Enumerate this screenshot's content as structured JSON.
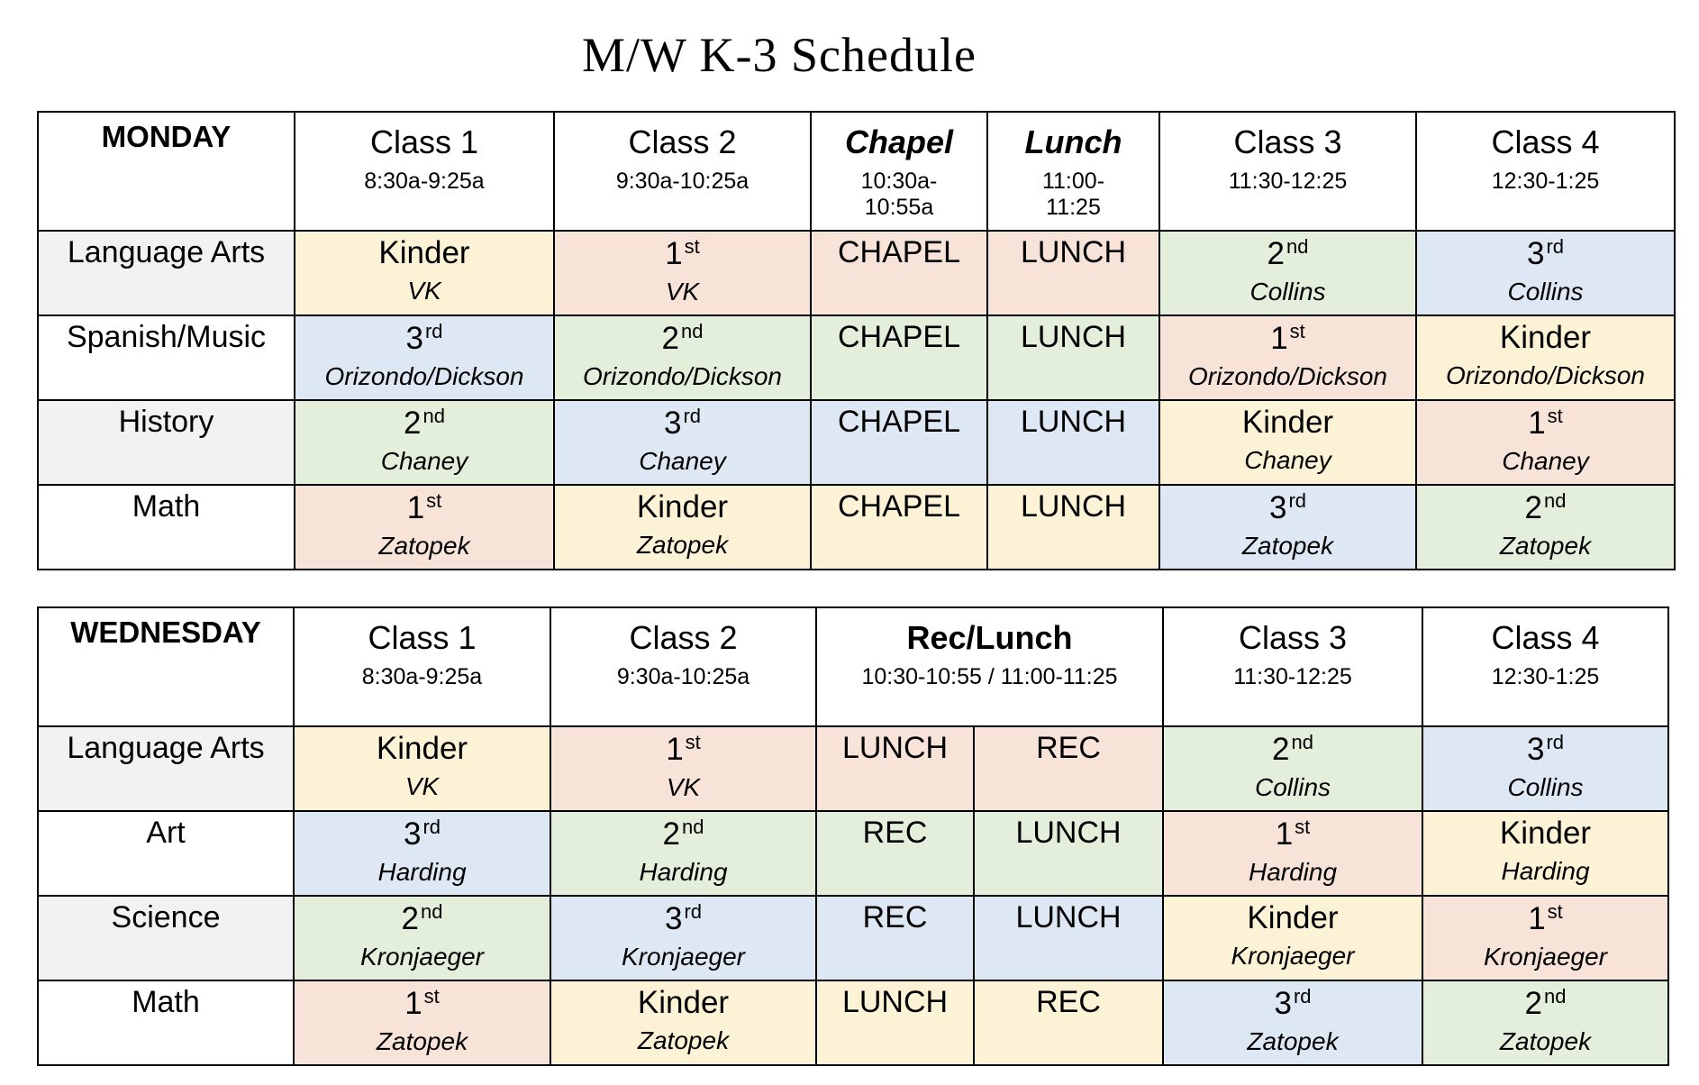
{
  "title": "M/W K-3 Schedule",
  "monday": {
    "day": "MONDAY",
    "columns": [
      {
        "name": "Class 1",
        "time": "8:30a-9:25a"
      },
      {
        "name": "Class 2",
        "time": "9:30a-10:25a"
      },
      {
        "name": "Chapel",
        "time": "10:30a-10:55a",
        "emphasis": "bold-italic"
      },
      {
        "name": "Lunch",
        "time": "11:00-11:25",
        "emphasis": "bold-italic"
      },
      {
        "name": "Class 3",
        "time": "11:30-12:25"
      },
      {
        "name": "Class 4",
        "time": "12:30-1:25"
      }
    ],
    "rows": [
      {
        "subject": "Language Arts",
        "shade": "#f2f2f2",
        "cells": [
          {
            "grade": [
              "Kinder"
            ],
            "teacher": "VK",
            "color": "#fcf2d5"
          },
          {
            "grade": [
              "1",
              "st"
            ],
            "teacher": "VK",
            "color": "#f8e3d9"
          },
          {
            "slots": [
              "CHAPEL"
            ],
            "color": "#f8e3d9"
          },
          {
            "slots": [
              "LUNCH"
            ],
            "color": "#f8e3d9"
          },
          {
            "grade": [
              "2",
              "nd"
            ],
            "teacher": "Collins",
            "color": "#e3efdb"
          },
          {
            "grade": [
              "3",
              "rd"
            ],
            "teacher": "Collins",
            "color": "#dee8f4"
          }
        ]
      },
      {
        "subject": "Spanish/Music",
        "shade": "#ffffff",
        "cells": [
          {
            "grade": [
              "3",
              "rd"
            ],
            "teacher": "Orizondo/Dickson",
            "color": "#dee8f4"
          },
          {
            "grade": [
              "2",
              "nd"
            ],
            "teacher": "Orizondo/Dickson",
            "color": "#e3efdb"
          },
          {
            "slots": [
              "CHAPEL"
            ],
            "color": "#e3efdb"
          },
          {
            "slots": [
              "LUNCH"
            ],
            "color": "#e3efdb"
          },
          {
            "grade": [
              "1",
              "st"
            ],
            "teacher": "Orizondo/Dickson",
            "color": "#f8e3d9"
          },
          {
            "grade": [
              "Kinder"
            ],
            "teacher": "Orizondo/Dickson",
            "color": "#fcf2d5"
          }
        ]
      },
      {
        "subject": "History",
        "shade": "#f2f2f2",
        "cells": [
          {
            "grade": [
              "2",
              "nd"
            ],
            "teacher": "Chaney",
            "color": "#e3efdb"
          },
          {
            "grade": [
              "3",
              "rd"
            ],
            "teacher": "Chaney",
            "color": "#dee8f4"
          },
          {
            "slots": [
              "CHAPEL"
            ],
            "color": "#dee8f4"
          },
          {
            "slots": [
              "LUNCH"
            ],
            "color": "#dee8f4"
          },
          {
            "grade": [
              "Kinder"
            ],
            "teacher": "Chaney",
            "color": "#fcf2d5"
          },
          {
            "grade": [
              "1",
              "st"
            ],
            "teacher": "Chaney",
            "color": "#f8e3d9"
          }
        ]
      },
      {
        "subject": "Math",
        "shade": "#ffffff",
        "cells": [
          {
            "grade": [
              "1",
              "st"
            ],
            "teacher": "Zatopek",
            "color": "#f8e3d9"
          },
          {
            "grade": [
              "Kinder"
            ],
            "teacher": "Zatopek",
            "color": "#fcf2d5"
          },
          {
            "slots": [
              "CHAPEL"
            ],
            "color": "#fcf2d5"
          },
          {
            "slots": [
              "LUNCH"
            ],
            "color": "#fcf2d5"
          },
          {
            "grade": [
              "3",
              "rd"
            ],
            "teacher": "Zatopek",
            "color": "#dee8f4"
          },
          {
            "grade": [
              "2",
              "nd"
            ],
            "teacher": "Zatopek",
            "color": "#e3efdb"
          }
        ]
      }
    ]
  },
  "wednesday": {
    "day": "WEDNESDAY",
    "columns": [
      {
        "name": "Class 1",
        "time": "8:30a-9:25a"
      },
      {
        "name": "Class 2",
        "time": "9:30a-10:25a"
      },
      {
        "name": "Rec/Lunch",
        "time": "10:30-10:55 / 11:00-11:25",
        "emphasis": "bold"
      },
      {
        "name": "Class 3",
        "time": "11:30-12:25"
      },
      {
        "name": "Class 4",
        "time": "12:30-1:25"
      }
    ],
    "rows": [
      {
        "subject": "Language Arts",
        "shade": "#f2f2f2",
        "cells": [
          {
            "grade": [
              "Kinder"
            ],
            "teacher": "VK",
            "color": "#fcf2d5"
          },
          {
            "grade": [
              "1",
              "st"
            ],
            "teacher": "VK",
            "color": "#f8e3d9"
          },
          {
            "slots": [
              "LUNCH",
              "REC"
            ],
            "color": "#f8e3d9"
          },
          {
            "grade": [
              "2",
              "nd"
            ],
            "teacher": "Collins",
            "color": "#e3efdb"
          },
          {
            "grade": [
              "3",
              "rd"
            ],
            "teacher": "Collins",
            "color": "#dee8f4"
          }
        ]
      },
      {
        "subject": "Art",
        "shade": "#ffffff",
        "cells": [
          {
            "grade": [
              "3",
              "rd"
            ],
            "teacher": "Harding",
            "color": "#dee8f4"
          },
          {
            "grade": [
              "2",
              "nd"
            ],
            "teacher": "Harding",
            "color": "#e3efdb"
          },
          {
            "slots": [
              "REC",
              "LUNCH"
            ],
            "color": "#e3efdb"
          },
          {
            "grade": [
              "1",
              "st"
            ],
            "teacher": "Harding",
            "color": "#f8e3d9"
          },
          {
            "grade": [
              "Kinder"
            ],
            "teacher": "Harding",
            "color": "#fcf2d5"
          }
        ]
      },
      {
        "subject": "Science",
        "shade": "#f2f2f2",
        "cells": [
          {
            "grade": [
              "2",
              "nd"
            ],
            "teacher": "Kronjaeger",
            "color": "#e3efdb"
          },
          {
            "grade": [
              "3",
              "rd"
            ],
            "teacher": "Kronjaeger",
            "color": "#dee8f4"
          },
          {
            "slots": [
              "REC",
              "LUNCH"
            ],
            "color": "#dee8f4"
          },
          {
            "grade": [
              "Kinder"
            ],
            "teacher": "Kronjaeger",
            "color": "#fcf2d5"
          },
          {
            "grade": [
              "1",
              "st"
            ],
            "teacher": "Kronjaeger",
            "color": "#f8e3d9"
          }
        ]
      },
      {
        "subject": "Math",
        "shade": "#ffffff",
        "cells": [
          {
            "grade": [
              "1",
              "st"
            ],
            "teacher": "Zatopek",
            "color": "#f8e3d9"
          },
          {
            "grade": [
              "Kinder"
            ],
            "teacher": "Zatopek",
            "color": "#fcf2d5"
          },
          {
            "slots": [
              "LUNCH",
              "REC"
            ],
            "color": "#fcf2d5"
          },
          {
            "grade": [
              "3",
              "rd"
            ],
            "teacher": "Zatopek",
            "color": "#dee8f4"
          },
          {
            "grade": [
              "2",
              "nd"
            ],
            "teacher": "Zatopek",
            "color": "#e3efdb"
          }
        ]
      }
    ]
  }
}
